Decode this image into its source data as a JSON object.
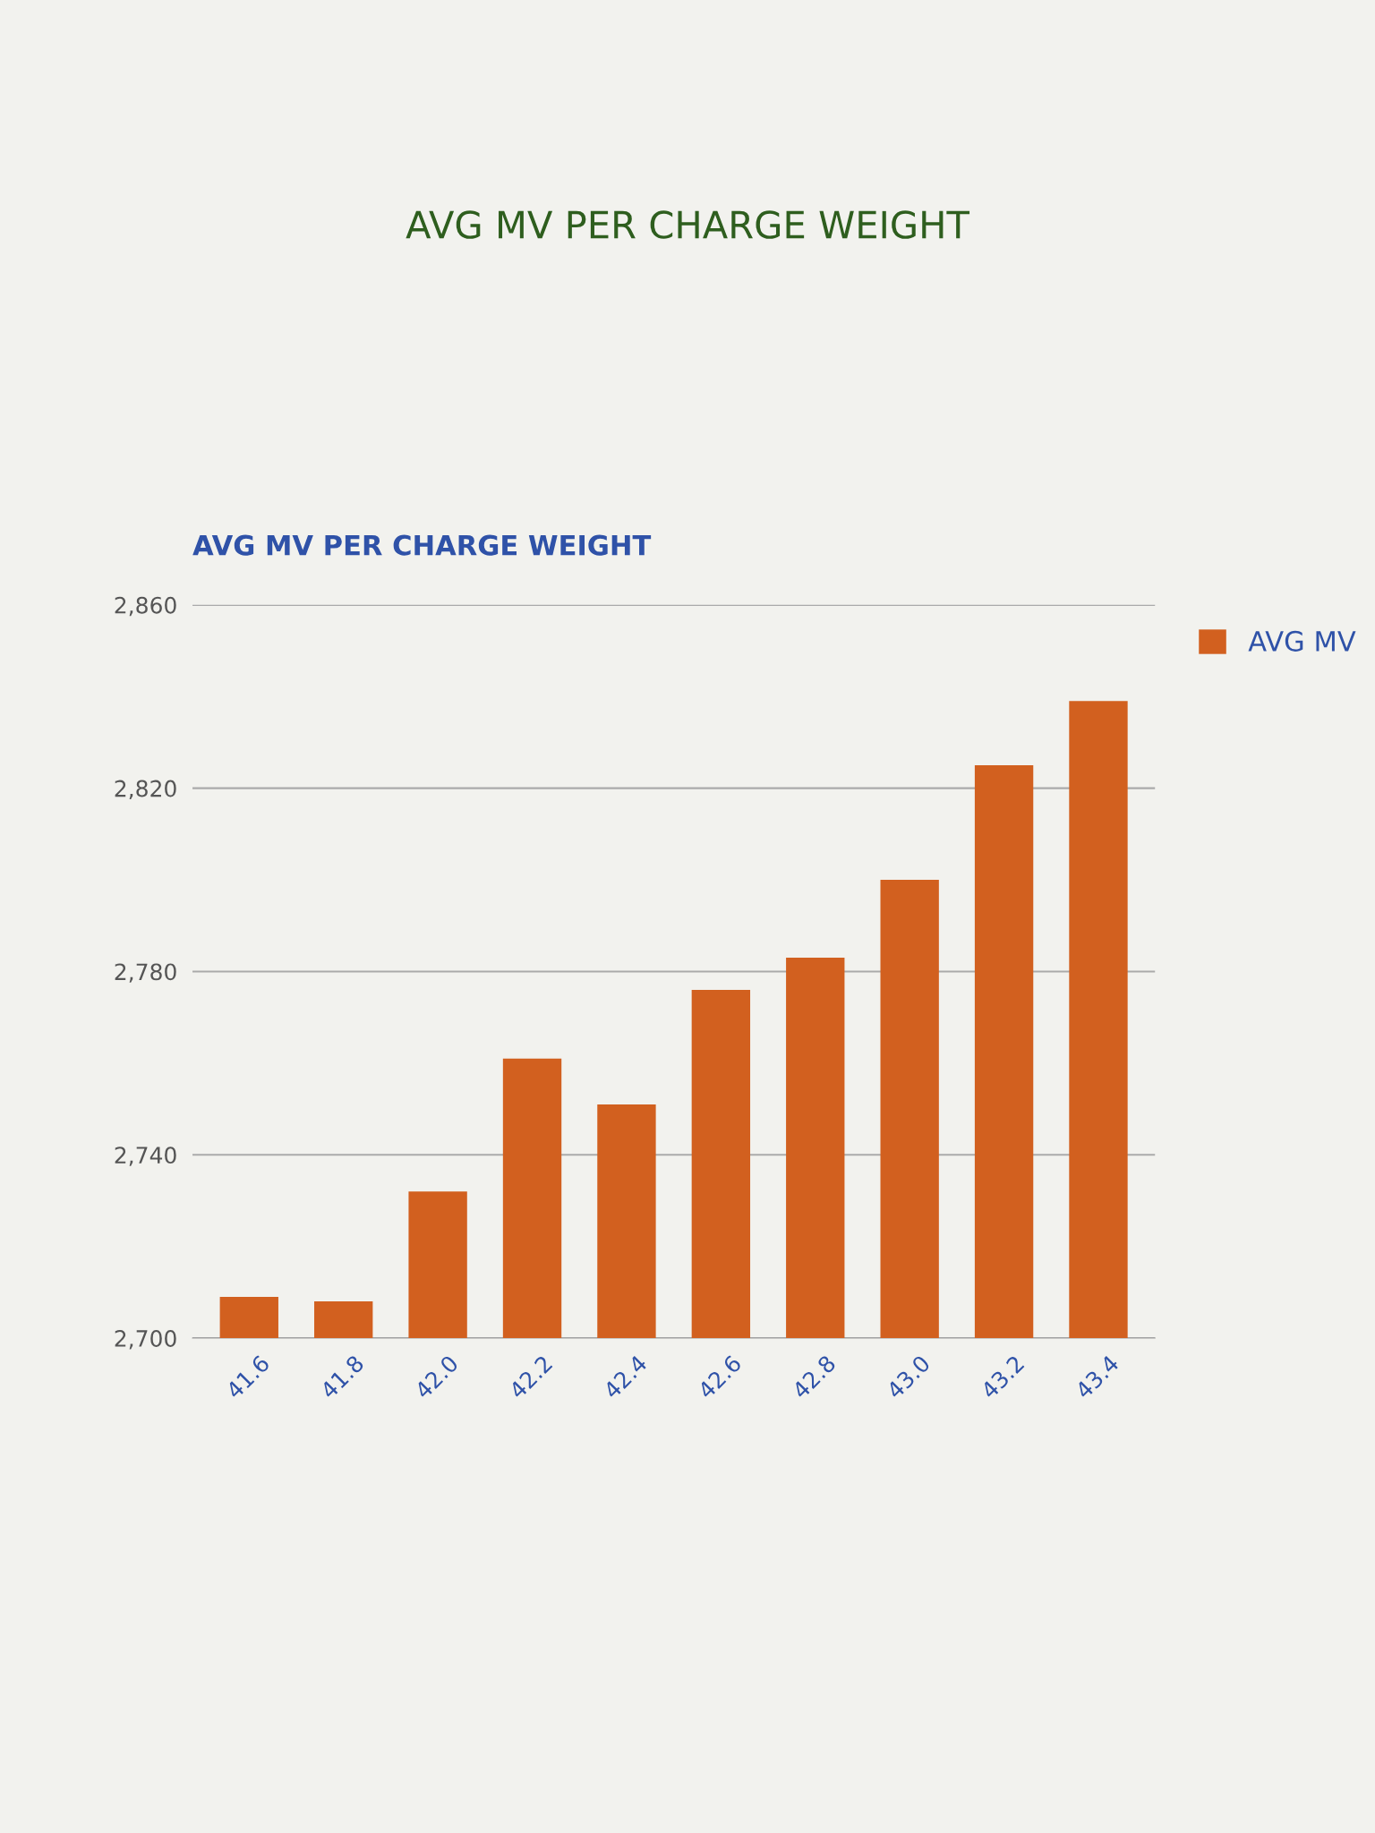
{
  "chart_data": {
    "type": "bar",
    "title": "AVG MV PER CHARGE WEIGHT",
    "subtitle": "AVG MV PER CHARGE WEIGHT",
    "categories": [
      "41.6",
      "41.8",
      "42.0",
      "42.2",
      "42.4",
      "42.6",
      "42.8",
      "43.0",
      "43.2",
      "43.4"
    ],
    "series": [
      {
        "name": "AVG MV",
        "color": "#d2601f",
        "values": [
          2709,
          2708,
          2732,
          2761,
          2751,
          2776,
          2783,
          2800,
          2825,
          2839
        ]
      }
    ],
    "ylim": [
      2700,
      2860
    ],
    "yticks": [
      {
        "value": 2700,
        "label": "2,700"
      },
      {
        "value": 2740,
        "label": "2,740"
      },
      {
        "value": 2780,
        "label": "2,780"
      },
      {
        "value": 2820,
        "label": "2,820"
      },
      {
        "value": 2860,
        "label": "2,860"
      }
    ],
    "grid": "y",
    "legend": "top right"
  }
}
